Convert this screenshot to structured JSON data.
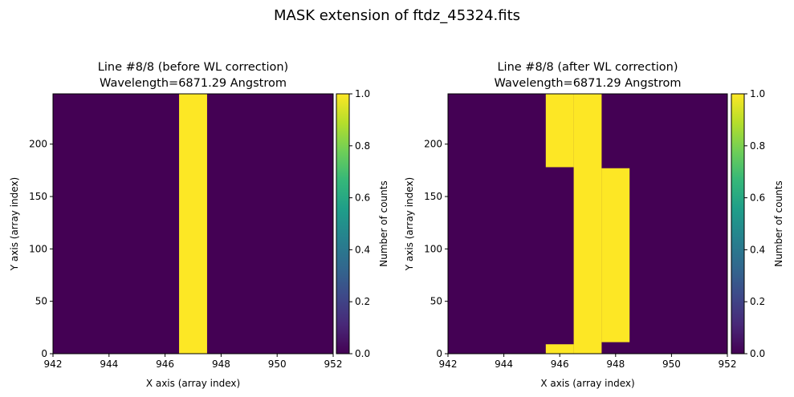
{
  "suptitle": "MASK extension of ftdz_45324.fits",
  "colormap": {
    "name": "viridis",
    "stops": [
      "#440154",
      "#482878",
      "#3e4989",
      "#31688e",
      "#26828e",
      "#1f9e89",
      "#35b779",
      "#6ece58",
      "#b5de2b",
      "#fde725"
    ]
  },
  "chart_data": [
    {
      "type": "heatmap",
      "title_line1": "Line #8/8 (before WL correction)",
      "title_line2": "Wavelength=6871.29 Angstrom",
      "xlabel": "X axis (array index)",
      "ylabel": "Y axis (array index)",
      "xlim": [
        942,
        952
      ],
      "ylim": [
        0,
        248
      ],
      "xticks": [
        "942",
        "944",
        "946",
        "948",
        "950",
        "952"
      ],
      "yticks": [
        "0",
        "50",
        "100",
        "150",
        "200"
      ],
      "background_value": 0,
      "masked_regions": [
        {
          "x0": 946.5,
          "x1": 947.5,
          "y0": 0,
          "y1": 248,
          "value": 1
        }
      ],
      "colorbar": {
        "label": "Number of counts",
        "range": [
          0,
          1
        ],
        "ticks": [
          "0.0",
          "0.2",
          "0.4",
          "0.6",
          "0.8",
          "1.0"
        ]
      }
    },
    {
      "type": "heatmap",
      "title_line1": "Line #8/8 (after WL correction)",
      "title_line2": "Wavelength=6871.29 Angstrom",
      "xlabel": "X axis (array index)",
      "ylabel": "Y axis (array index)",
      "xlim": [
        942,
        952
      ],
      "ylim": [
        0,
        248
      ],
      "xticks": [
        "942",
        "944",
        "946",
        "948",
        "950",
        "952"
      ],
      "yticks": [
        "0",
        "50",
        "100",
        "150",
        "200"
      ],
      "background_value": 0,
      "masked_regions": [
        {
          "x0": 945.5,
          "x1": 946.5,
          "y0": 0,
          "y1": 9,
          "value": 1
        },
        {
          "x0": 945.5,
          "x1": 946.5,
          "y0": 178,
          "y1": 248,
          "value": 1
        },
        {
          "x0": 946.5,
          "x1": 947.5,
          "y0": 0,
          "y1": 248,
          "value": 1
        },
        {
          "x0": 947.5,
          "x1": 948.5,
          "y0": 11,
          "y1": 177,
          "value": 1
        }
      ],
      "colorbar": {
        "label": "Number of counts",
        "range": [
          0,
          1
        ],
        "ticks": [
          "0.0",
          "0.2",
          "0.4",
          "0.6",
          "0.8",
          "1.0"
        ]
      }
    }
  ]
}
